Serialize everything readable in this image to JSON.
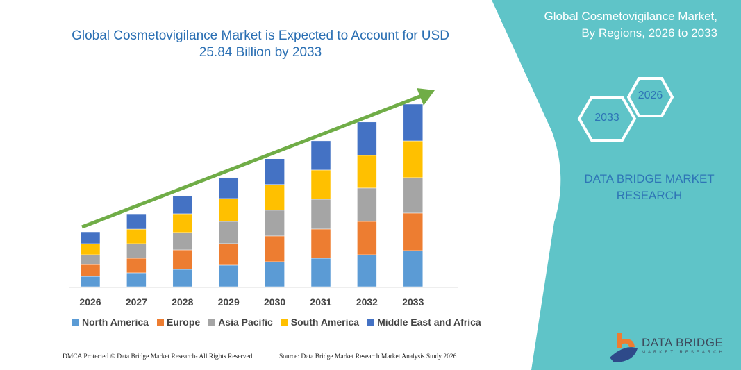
{
  "header": {
    "title": "Global Cosmetovigilance Market is Expected to Account for USD 25.84 Billion by 2033",
    "side_title_line1": "Global Cosmetovigilance Market,",
    "side_title_line2": "By Regions, 2026 to 2033",
    "hex_start": "2026",
    "hex_end": "2033",
    "brand_line1": "DATA BRIDGE MARKET",
    "brand_line2": "RESEARCH"
  },
  "footer": {
    "left": "DMCA Protected © Data Bridge Market Research- All Rights Reserved.",
    "right": "Source: Data Bridge Market Research Market Analysis Study 2026",
    "logo_text": "DATA BRIDGE",
    "logo_sub": "MARKET RESEARCH"
  },
  "colors": {
    "panel": "#5fc4c8",
    "arrow": "#70ad47",
    "title": "#2a6fb3"
  },
  "chart_data": {
    "type": "bar",
    "stacked": true,
    "title": "Global Cosmetovigilance Market is Expected to Account for USD 25.84 Billion by 2033",
    "categories": [
      "2026",
      "2027",
      "2028",
      "2029",
      "2030",
      "2031",
      "2032",
      "2033"
    ],
    "unit": "USD Billion",
    "y_axis_visible": false,
    "grid": false,
    "legend_position": "bottom",
    "trend_arrow": true,
    "series": [
      {
        "name": "North America",
        "color": "#5b9bd5",
        "values": [
          1.47,
          1.97,
          2.46,
          3.05,
          3.54,
          4.03,
          4.52,
          5.11
        ]
      },
      {
        "name": "Europe",
        "color": "#ed7d31",
        "values": [
          1.67,
          2.06,
          2.75,
          3.05,
          3.64,
          4.13,
          4.72,
          5.31
        ]
      },
      {
        "name": "Asia Pacific",
        "color": "#a5a5a5",
        "values": [
          1.38,
          2.06,
          2.46,
          3.14,
          3.64,
          4.22,
          4.72,
          5.01
        ]
      },
      {
        "name": "South America",
        "color": "#ffc000",
        "values": [
          1.57,
          2.06,
          2.65,
          3.24,
          3.64,
          4.13,
          4.62,
          5.2
        ]
      },
      {
        "name": "Middle East and Africa",
        "color": "#4472c4",
        "values": [
          1.67,
          2.16,
          2.55,
          2.95,
          3.64,
          4.13,
          4.72,
          5.21
        ]
      }
    ]
  }
}
